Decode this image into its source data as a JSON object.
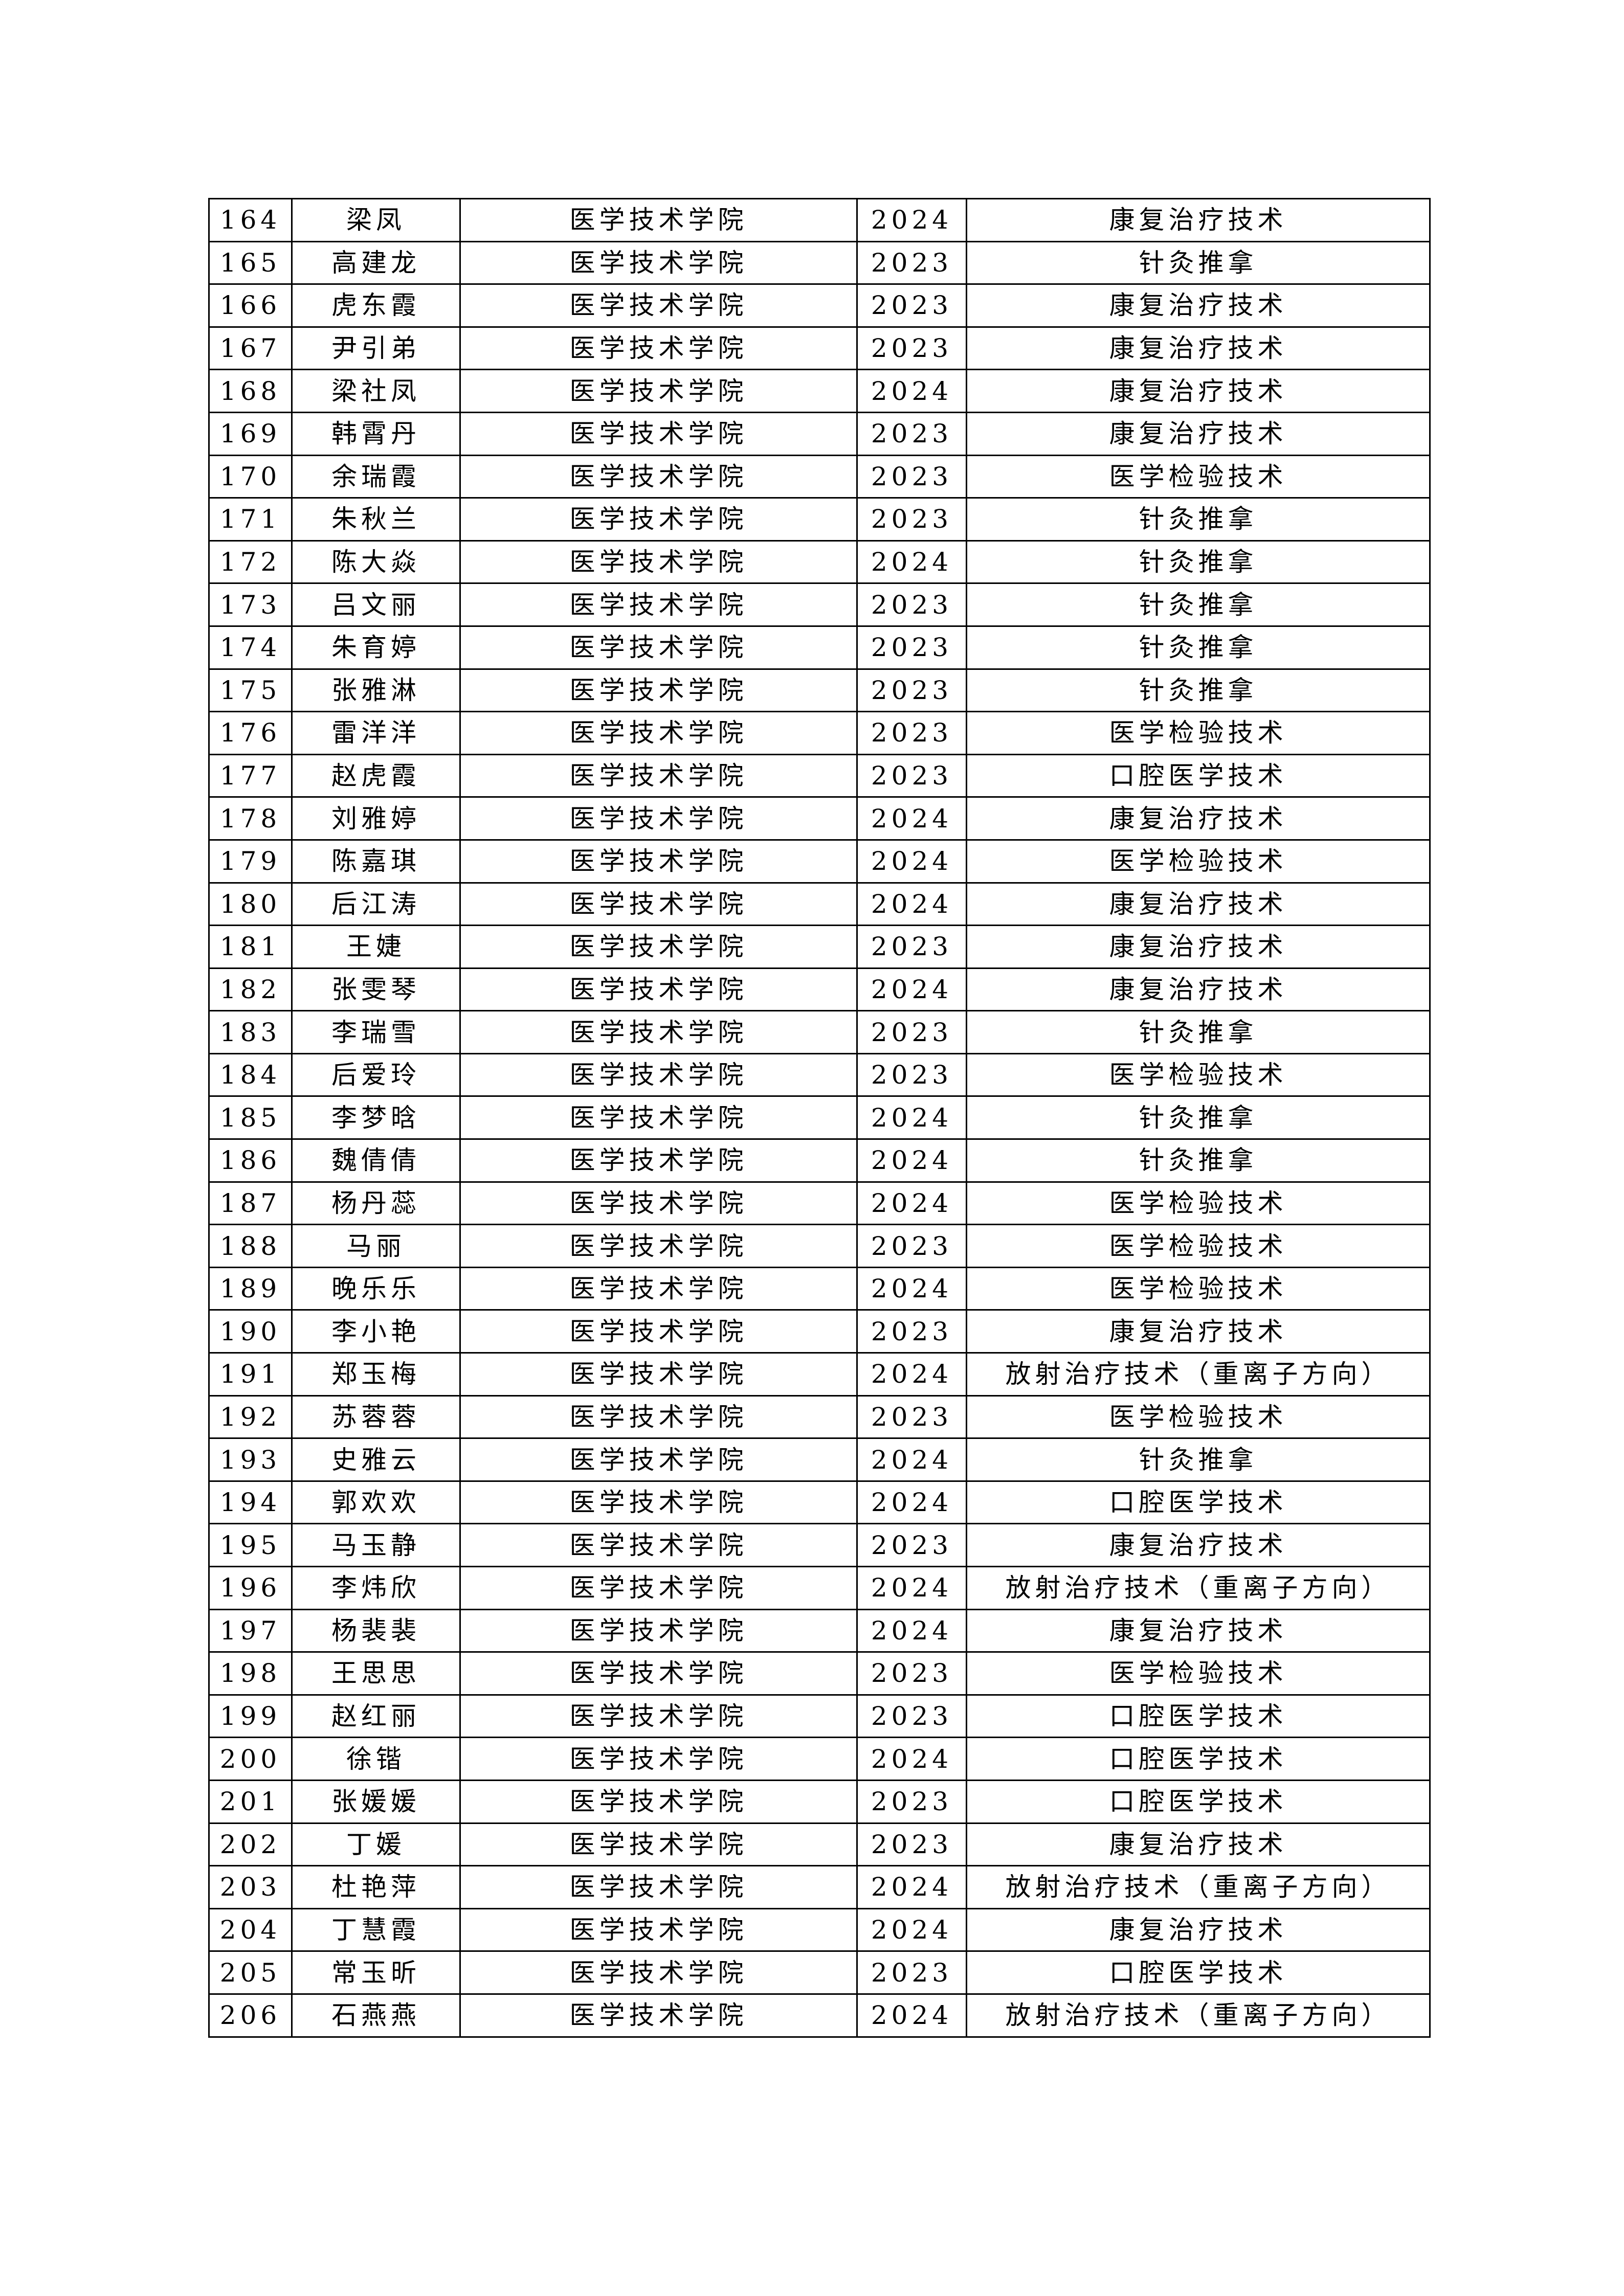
{
  "table": {
    "rows": [
      [
        "164",
        "梁凤",
        "医学技术学院",
        "2024",
        "康复治疗技术"
      ],
      [
        "165",
        "高建龙",
        "医学技术学院",
        "2023",
        "针灸推拿"
      ],
      [
        "166",
        "虎东霞",
        "医学技术学院",
        "2023",
        "康复治疗技术"
      ],
      [
        "167",
        "尹引弟",
        "医学技术学院",
        "2023",
        "康复治疗技术"
      ],
      [
        "168",
        "梁社凤",
        "医学技术学院",
        "2024",
        "康复治疗技术"
      ],
      [
        "169",
        "韩霄丹",
        "医学技术学院",
        "2023",
        "康复治疗技术"
      ],
      [
        "170",
        "余瑞霞",
        "医学技术学院",
        "2023",
        "医学检验技术"
      ],
      [
        "171",
        "朱秋兰",
        "医学技术学院",
        "2023",
        "针灸推拿"
      ],
      [
        "172",
        "陈大焱",
        "医学技术学院",
        "2024",
        "针灸推拿"
      ],
      [
        "173",
        "吕文丽",
        "医学技术学院",
        "2023",
        "针灸推拿"
      ],
      [
        "174",
        "朱育婷",
        "医学技术学院",
        "2023",
        "针灸推拿"
      ],
      [
        "175",
        "张雅淋",
        "医学技术学院",
        "2023",
        "针灸推拿"
      ],
      [
        "176",
        "雷洋洋",
        "医学技术学院",
        "2023",
        "医学检验技术"
      ],
      [
        "177",
        "赵虎霞",
        "医学技术学院",
        "2023",
        "口腔医学技术"
      ],
      [
        "178",
        "刘雅婷",
        "医学技术学院",
        "2024",
        "康复治疗技术"
      ],
      [
        "179",
        "陈嘉琪",
        "医学技术学院",
        "2024",
        "医学检验技术"
      ],
      [
        "180",
        "后江涛",
        "医学技术学院",
        "2024",
        "康复治疗技术"
      ],
      [
        "181",
        "王婕",
        "医学技术学院",
        "2023",
        "康复治疗技术"
      ],
      [
        "182",
        "张雯琴",
        "医学技术学院",
        "2024",
        "康复治疗技术"
      ],
      [
        "183",
        "李瑞雪",
        "医学技术学院",
        "2023",
        "针灸推拿"
      ],
      [
        "184",
        "后爱玲",
        "医学技术学院",
        "2023",
        "医学检验技术"
      ],
      [
        "185",
        "李梦晗",
        "医学技术学院",
        "2024",
        "针灸推拿"
      ],
      [
        "186",
        "魏倩倩",
        "医学技术学院",
        "2024",
        "针灸推拿"
      ],
      [
        "187",
        "杨丹蕊",
        "医学技术学院",
        "2024",
        "医学检验技术"
      ],
      [
        "188",
        "马丽",
        "医学技术学院",
        "2023",
        "医学检验技术"
      ],
      [
        "189",
        "晚乐乐",
        "医学技术学院",
        "2024",
        "医学检验技术"
      ],
      [
        "190",
        "李小艳",
        "医学技术学院",
        "2023",
        "康复治疗技术"
      ],
      [
        "191",
        "郑玉梅",
        "医学技术学院",
        "2024",
        "放射治疗技术（重离子方向）"
      ],
      [
        "192",
        "苏蓉蓉",
        "医学技术学院",
        "2023",
        "医学检验技术"
      ],
      [
        "193",
        "史雅云",
        "医学技术学院",
        "2024",
        "针灸推拿"
      ],
      [
        "194",
        "郭欢欢",
        "医学技术学院",
        "2024",
        "口腔医学技术"
      ],
      [
        "195",
        "马玉静",
        "医学技术学院",
        "2023",
        "康复治疗技术"
      ],
      [
        "196",
        "李炜欣",
        "医学技术学院",
        "2024",
        "放射治疗技术（重离子方向）"
      ],
      [
        "197",
        "杨裴裴",
        "医学技术学院",
        "2024",
        "康复治疗技术"
      ],
      [
        "198",
        "王思思",
        "医学技术学院",
        "2023",
        "医学检验技术"
      ],
      [
        "199",
        "赵红丽",
        "医学技术学院",
        "2023",
        "口腔医学技术"
      ],
      [
        "200",
        "徐锴",
        "医学技术学院",
        "2024",
        "口腔医学技术"
      ],
      [
        "201",
        "张媛媛",
        "医学技术学院",
        "2023",
        "口腔医学技术"
      ],
      [
        "202",
        "丁媛",
        "医学技术学院",
        "2023",
        "康复治疗技术"
      ],
      [
        "203",
        "杜艳萍",
        "医学技术学院",
        "2024",
        "放射治疗技术（重离子方向）"
      ],
      [
        "204",
        "丁慧霞",
        "医学技术学院",
        "2024",
        "康复治疗技术"
      ],
      [
        "205",
        "常玉昕",
        "医学技术学院",
        "2023",
        "口腔医学技术"
      ],
      [
        "206",
        "石燕燕",
        "医学技术学院",
        "2024",
        "放射治疗技术（重离子方向）"
      ]
    ]
  }
}
